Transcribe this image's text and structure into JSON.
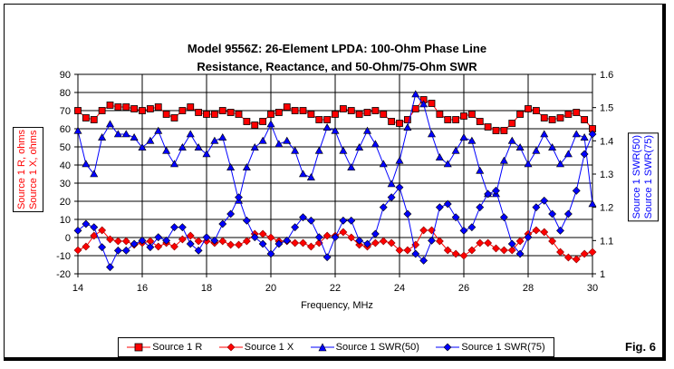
{
  "chart_data": {
    "type": "line",
    "title": "Model 9556Z:  26-Element LPDA:  100-Ohm Phase Line",
    "subtitle": "Resistance, Reactance, and 50-Ohm/75-Ohm SWR",
    "xlabel": "Frequency, MHz",
    "ylabel_left": [
      "Source 1 R, ohms",
      "Source 1 X, ohms"
    ],
    "ylabel_right": [
      "Source 1 SWR(50)",
      "Source 1 SWR(75)"
    ],
    "xlim": [
      14,
      30
    ],
    "ylim_left": [
      -20,
      90
    ],
    "ylim_right": [
      1,
      1.6
    ],
    "xticks": [
      "14",
      "16",
      "18",
      "20",
      "22",
      "24",
      "26",
      "28",
      "30"
    ],
    "yticks_left": [
      "90",
      "80",
      "70",
      "60",
      "50",
      "40",
      "30",
      "20",
      "10",
      "0",
      "-10",
      "-20"
    ],
    "yticks_right": [
      "1.6",
      "1.5",
      "1.4",
      "1.3",
      "1.2",
      "1.1",
      "1"
    ],
    "x_start": 14,
    "x_step": 0.25,
    "series": [
      {
        "name": "Source 1 R",
        "axis": "left",
        "color": "#ff0000",
        "marker": "square",
        "values": [
          70,
          66,
          65,
          70,
          73,
          72,
          72,
          71,
          70,
          71,
          72,
          68,
          66,
          70,
          72,
          69,
          68,
          68,
          70,
          69,
          68,
          64,
          62,
          64,
          68,
          69,
          72,
          70,
          70,
          68,
          65,
          65,
          68,
          71,
          70,
          68,
          69,
          70,
          68,
          64,
          63,
          65,
          71,
          76,
          74,
          68,
          65,
          65,
          67,
          68,
          64,
          61,
          59,
          59,
          63,
          68,
          71,
          70,
          66,
          65,
          66,
          68,
          69,
          65,
          60
        ]
      },
      {
        "name": "Source 1 X",
        "axis": "left",
        "color": "#ff0000",
        "marker": "diamond",
        "values": [
          -7,
          -5,
          1,
          4,
          -1,
          -2,
          -2,
          -4,
          -3,
          -2,
          -5,
          -3,
          -5,
          -1,
          1,
          -2,
          -2,
          -3,
          -2,
          -4,
          -4,
          -2,
          2,
          2,
          0,
          -2,
          -2,
          -3,
          -3,
          -5,
          -3,
          1,
          1,
          3,
          0,
          -4,
          -5,
          -3,
          -2,
          -3,
          -7,
          -7,
          -4,
          4,
          4,
          -2,
          -7,
          -9,
          -10,
          -7,
          -3,
          -3,
          -6,
          -7,
          -7,
          -2,
          2,
          4,
          3,
          -2,
          -8,
          -11,
          -12,
          -9,
          -8
        ]
      },
      {
        "name": "Source 1 SWR(50)",
        "axis": "right",
        "color": "#0000ff",
        "marker": "triangle",
        "values": [
          1.43,
          1.33,
          1.3,
          1.41,
          1.45,
          1.42,
          1.42,
          1.41,
          1.38,
          1.4,
          1.43,
          1.37,
          1.33,
          1.38,
          1.42,
          1.38,
          1.36,
          1.4,
          1.41,
          1.32,
          1.22,
          1.32,
          1.38,
          1.4,
          1.45,
          1.39,
          1.4,
          1.37,
          1.3,
          1.29,
          1.37,
          1.44,
          1.43,
          1.37,
          1.32,
          1.38,
          1.43,
          1.39,
          1.33,
          1.27,
          1.34,
          1.44,
          1.54,
          1.51,
          1.42,
          1.35,
          1.33,
          1.37,
          1.41,
          1.4,
          1.31,
          1.24,
          1.24,
          1.34,
          1.4,
          1.38,
          1.33,
          1.37,
          1.42,
          1.38,
          1.33,
          1.36,
          1.42,
          1.41,
          1.21
        ]
      },
      {
        "name": "Source 1 SWR(75)",
        "axis": "right",
        "color": "#0000ff",
        "marker": "diamond",
        "values": [
          1.13,
          1.15,
          1.14,
          1.08,
          1.02,
          1.07,
          1.07,
          1.09,
          1.1,
          1.08,
          1.11,
          1.1,
          1.14,
          1.14,
          1.09,
          1.07,
          1.11,
          1.1,
          1.15,
          1.18,
          1.23,
          1.16,
          1.11,
          1.09,
          1.06,
          1.09,
          1.1,
          1.14,
          1.17,
          1.16,
          1.11,
          1.05,
          1.11,
          1.16,
          1.16,
          1.1,
          1.09,
          1.12,
          1.2,
          1.23,
          1.26,
          1.18,
          1.06,
          1.04,
          1.1,
          1.2,
          1.21,
          1.17,
          1.13,
          1.14,
          1.2,
          1.24,
          1.25,
          1.17,
          1.09,
          1.06,
          1.11,
          1.2,
          1.22,
          1.18,
          1.13,
          1.18,
          1.25,
          1.36,
          1.42
        ]
      }
    ],
    "legend": [
      "Source 1 R",
      "Source 1 X",
      "Source 1 SWR(50)",
      "Source 1 SWR(75)"
    ],
    "legend_position": "bottom",
    "grid": true
  },
  "figure_label": "Fig. 6"
}
